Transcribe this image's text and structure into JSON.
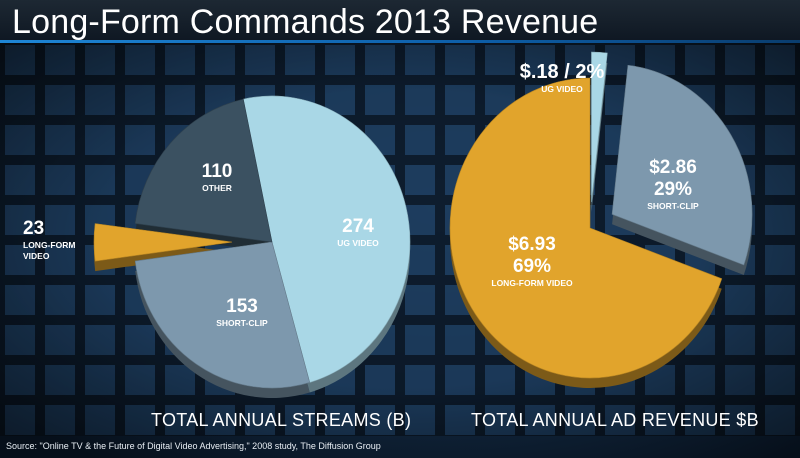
{
  "title": "Long-Form Commands 2013 Revenue",
  "source": "Source: \"Online TV & the Future of Digital Video Advertising,\" 2008 study, The Diffusion Group",
  "colors": {
    "ug_video": "#a9d7e6",
    "short_clip": "#7d98ad",
    "other": "#3b5161",
    "long_form": "#e1a42c",
    "background": "#0a1a2c"
  },
  "chart_data": [
    {
      "type": "pie",
      "title": "TOTAL ANNUAL STREAMS (B)",
      "slices": [
        {
          "value": 274,
          "value_label": "274",
          "label": "UG VIDEO",
          "color": "#a9d7e6",
          "exploded": false
        },
        {
          "value": 153,
          "value_label": "153",
          "label": "SHORT-CLIP",
          "color": "#7d98ad",
          "exploded": false
        },
        {
          "value": 23,
          "value_label": "23",
          "label": "LONG-FORM VIDEO",
          "color": "#e1a42c",
          "exploded": true
        },
        {
          "value": 110,
          "value_label": "110",
          "label": "OTHER",
          "color": "#3b5161",
          "exploded": false
        }
      ]
    },
    {
      "type": "pie",
      "title": "TOTAL ANNUAL AD REVENUE $B",
      "slices": [
        {
          "value": 0.18,
          "value_label": "$.18 / 2%",
          "label": "UG VIDEO",
          "color": "#a9d7e6",
          "exploded": true
        },
        {
          "value": 2.86,
          "value_label": "$2.86",
          "percent_label": "29%",
          "label": "SHORT-CLIP",
          "color": "#7d98ad",
          "exploded": true
        },
        {
          "value": 6.93,
          "value_label": "$6.93",
          "percent_label": "69%",
          "label": "LONG-FORM VIDEO",
          "color": "#e1a42c",
          "exploded": false
        }
      ]
    }
  ]
}
